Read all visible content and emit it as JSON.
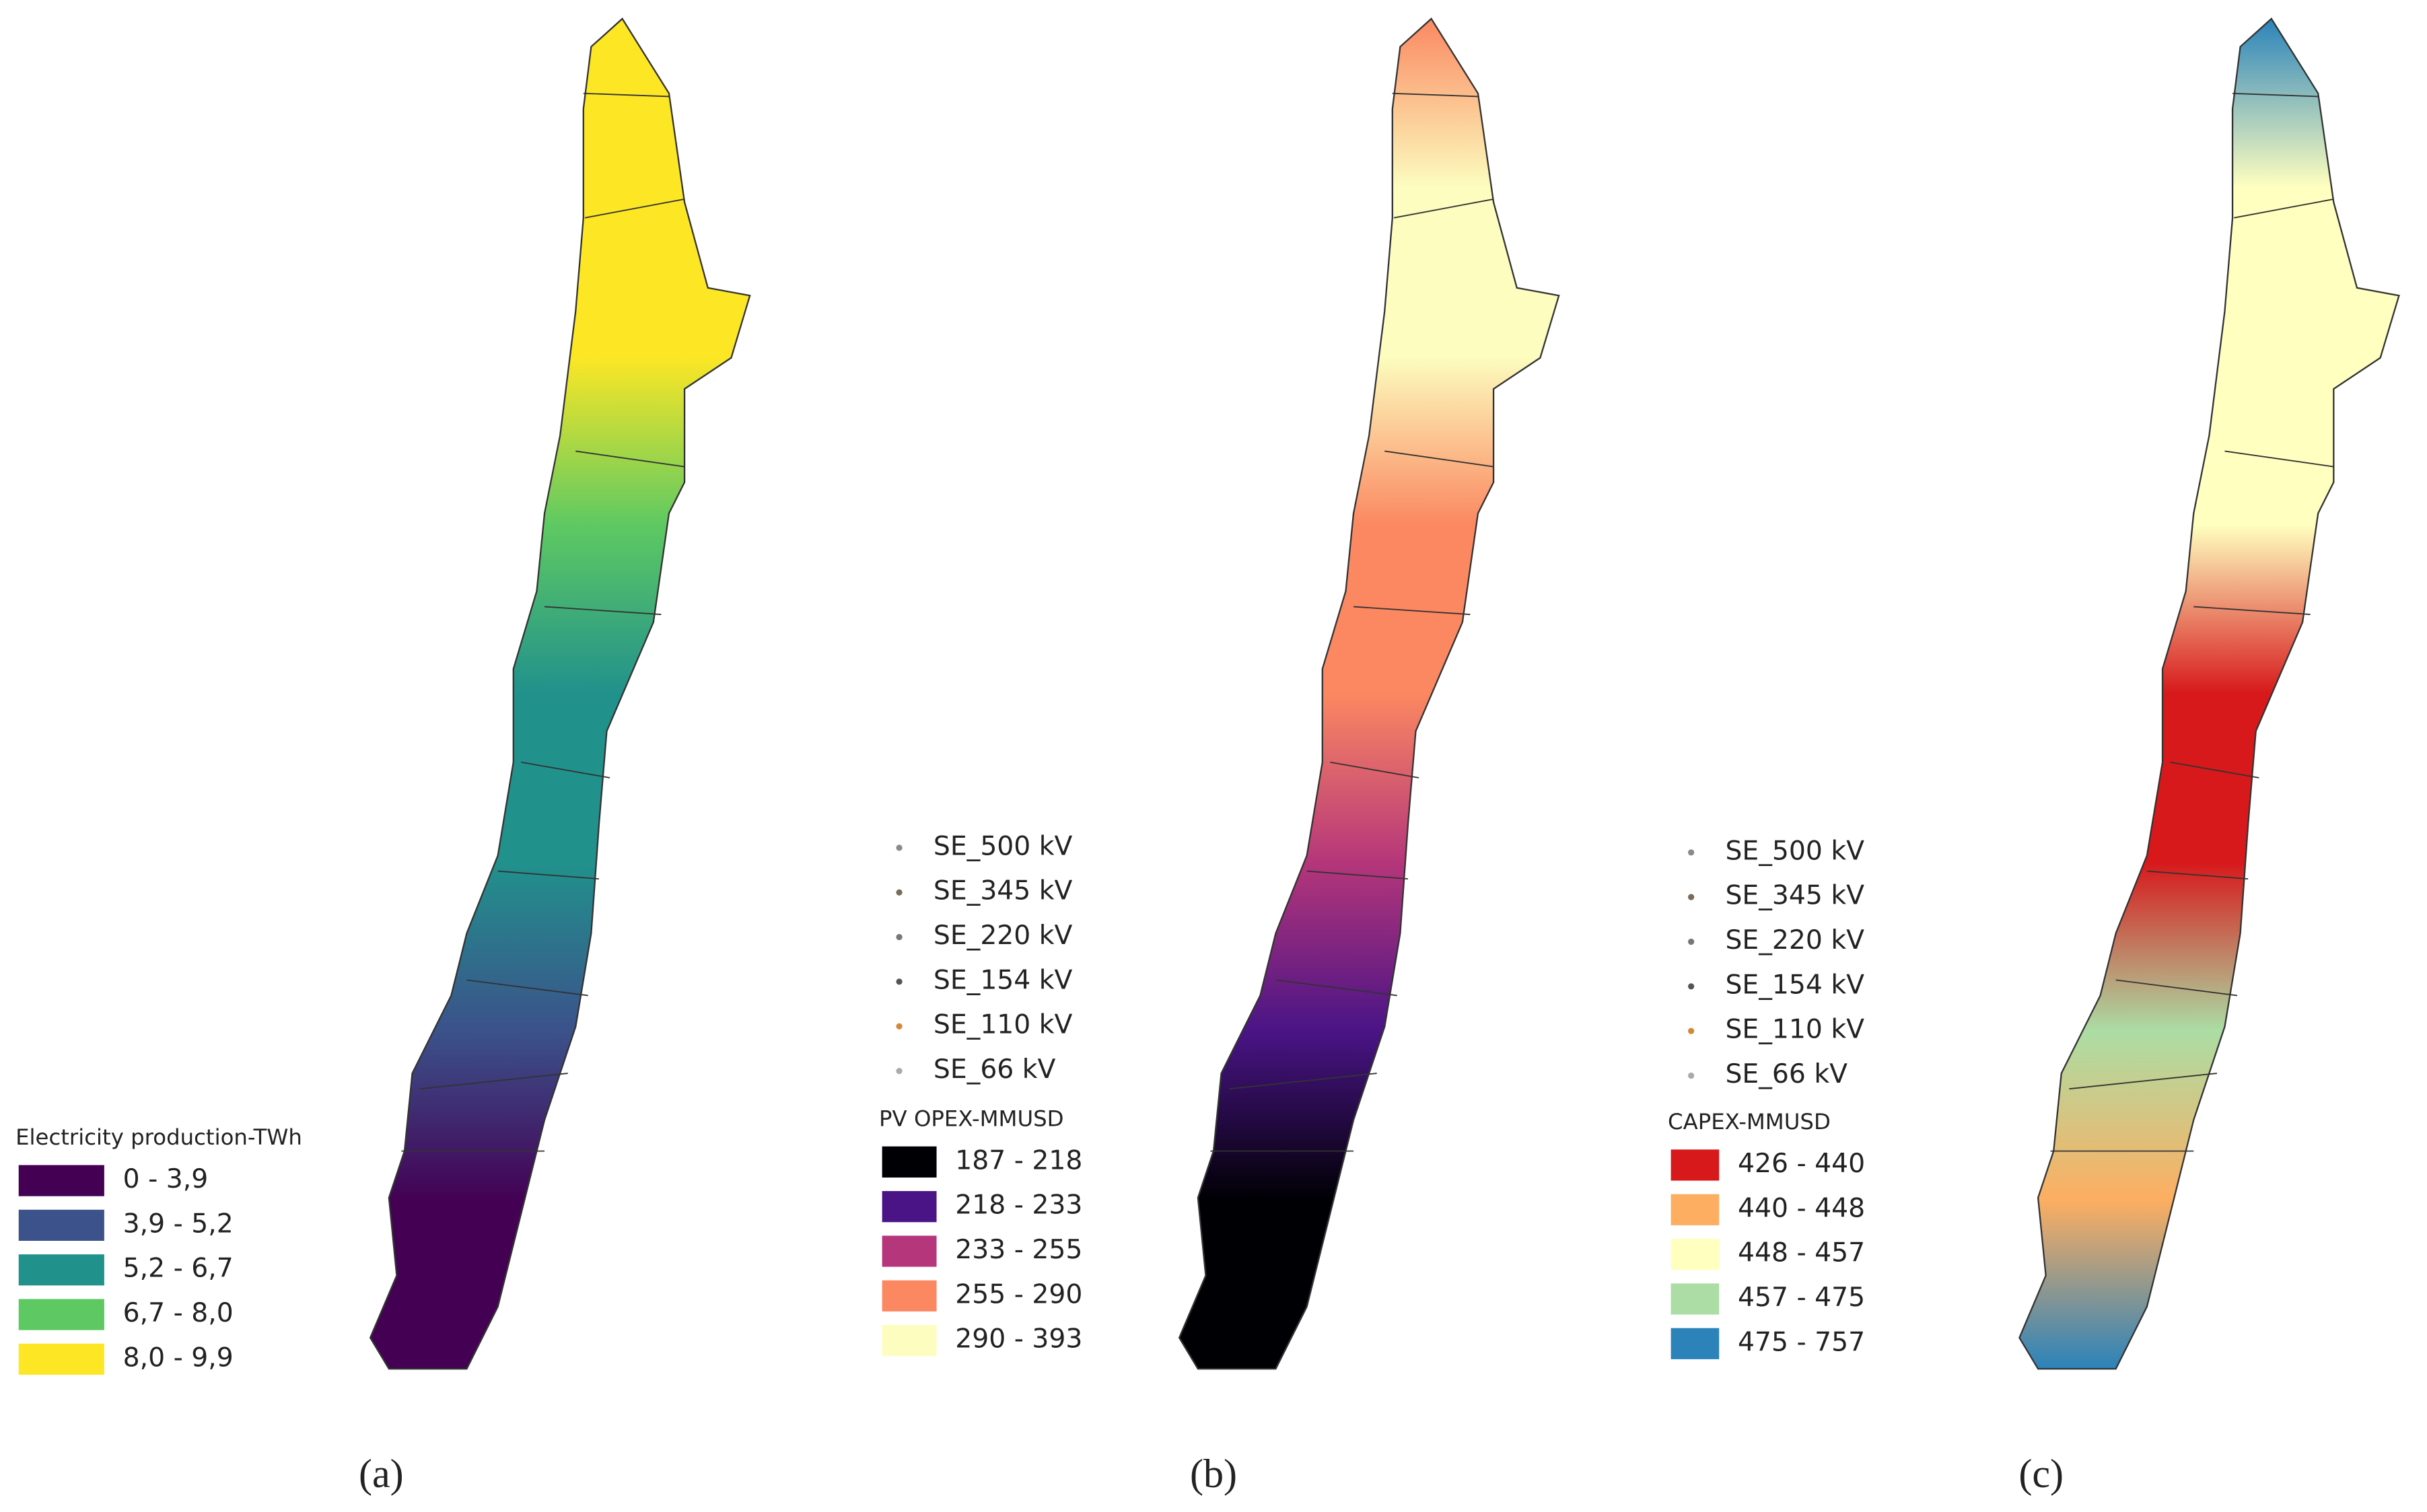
{
  "panels": [
    {
      "caption": "(a)",
      "legend": {
        "title": "Electricity  production-TWh",
        "classes": [
          {
            "label": "0 - 3,9",
            "color": "#440154"
          },
          {
            "label": "3,9 - 5,2",
            "color": "#3b528b"
          },
          {
            "label": "5,2 - 6,7",
            "color": "#21918c"
          },
          {
            "label": "6,7 - 8,0",
            "color": "#5ec962"
          },
          {
            "label": "8,0 - 9,9",
            "color": "#fde725"
          }
        ]
      }
    },
    {
      "caption": "(b)",
      "substations": [
        {
          "label": "SE_500 kV",
          "color": "#8a8a8a"
        },
        {
          "label": "SE_345 kV",
          "color": "#7a6a5a"
        },
        {
          "label": "SE_220 kV",
          "color": "#777777"
        },
        {
          "label": "SE_154 kV",
          "color": "#555555"
        },
        {
          "label": "SE_110 kV",
          "color": "#d08a3a"
        },
        {
          "label": "SE_66 kV",
          "color": "#aaaaaa"
        }
      ],
      "legend": {
        "title": "PV OPEX-MMUSD",
        "classes": [
          {
            "label": "187 - 218",
            "color": "#000004"
          },
          {
            "label": "218 - 233",
            "color": "#4a1486"
          },
          {
            "label": "233 - 255",
            "color": "#b5367a"
          },
          {
            "label": "255 - 290",
            "color": "#fb8861"
          },
          {
            "label": "290 - 393",
            "color": "#fcfdbf"
          }
        ]
      }
    },
    {
      "caption": "(c)",
      "substations": [
        {
          "label": "SE_500 kV",
          "color": "#8a8a8a"
        },
        {
          "label": "SE_345 kV",
          "color": "#7a6a5a"
        },
        {
          "label": "SE_220 kV",
          "color": "#777777"
        },
        {
          "label": "SE_154 kV",
          "color": "#555555"
        },
        {
          "label": "SE_110 kV",
          "color": "#d08a3a"
        },
        {
          "label": "SE_66 kV",
          "color": "#aaaaaa"
        }
      ],
      "legend": {
        "title": "CAPEX-MMUSD",
        "classes": [
          {
            "label": "426 - 440",
            "color": "#d7191c"
          },
          {
            "label": "440 - 448",
            "color": "#fdae61"
          },
          {
            "label": "448 - 457",
            "color": "#ffffbf"
          },
          {
            "label": "457 - 475",
            "color": "#abdda4"
          },
          {
            "label": "475 - 757",
            "color": "#2b83ba"
          }
        ]
      }
    }
  ]
}
